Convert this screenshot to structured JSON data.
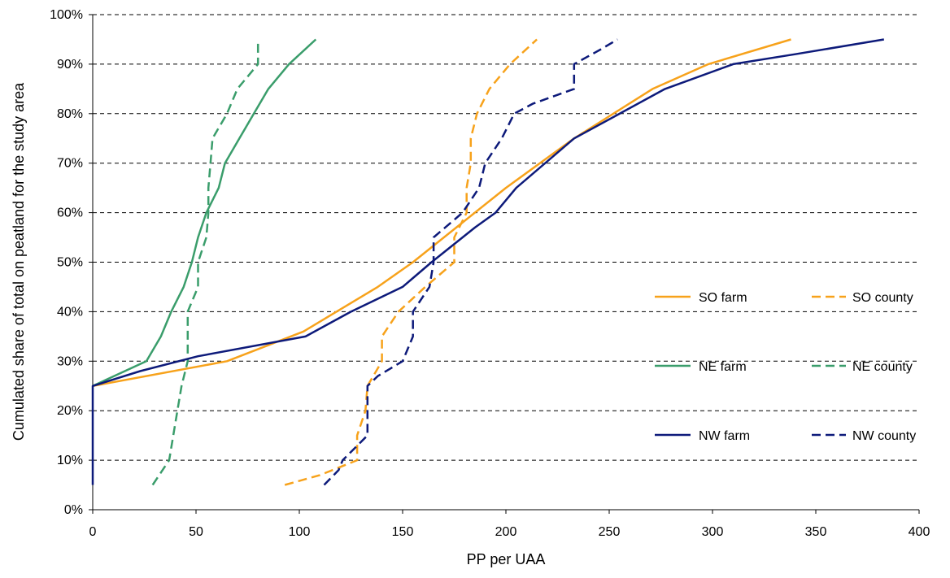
{
  "chart_data": {
    "type": "line",
    "title": "",
    "xlabel": "PP per UAA",
    "ylabel": "Cumulated share of total  on peatland for the study area",
    "xlim": [
      0,
      400
    ],
    "ylim": [
      0,
      100
    ],
    "x_ticks": [
      "0",
      "50",
      "100",
      "150",
      "200",
      "250",
      "300",
      "350",
      "400"
    ],
    "y_ticks": [
      "0%",
      "10%",
      "20%",
      "30%",
      "40%",
      "50%",
      "60%",
      "70%",
      "80%",
      "90%",
      "100%"
    ],
    "grid": "horizontal dashed",
    "legend_position": "right",
    "series": [
      {
        "name": "SO farm",
        "color": "#F7A21B",
        "dash": "solid",
        "points": [
          [
            0,
            25
          ],
          [
            65,
            30
          ],
          [
            102,
            36
          ],
          [
            138,
            45
          ],
          [
            155,
            50
          ],
          [
            170,
            55
          ],
          [
            200,
            65
          ],
          [
            233,
            75
          ],
          [
            271,
            85
          ],
          [
            298,
            90
          ],
          [
            338,
            95
          ]
        ]
      },
      {
        "name": "SO county",
        "color": "#F7A21B",
        "dash": "dashed",
        "points": [
          [
            93,
            5
          ],
          [
            110,
            7
          ],
          [
            122,
            9
          ],
          [
            128,
            10
          ],
          [
            128,
            15
          ],
          [
            132,
            20
          ],
          [
            133,
            25
          ],
          [
            140,
            30
          ],
          [
            140,
            35
          ],
          [
            148,
            40
          ],
          [
            161,
            45
          ],
          [
            175,
            50
          ],
          [
            175,
            55
          ],
          [
            181,
            60
          ],
          [
            181,
            65
          ],
          [
            183,
            70
          ],
          [
            183,
            75
          ],
          [
            186,
            80
          ],
          [
            192,
            85
          ],
          [
            202,
            90
          ],
          [
            215,
            95
          ]
        ]
      },
      {
        "name": "NE farm",
        "color": "#3A9D6B",
        "dash": "solid",
        "points": [
          [
            0,
            25
          ],
          [
            26,
            30
          ],
          [
            33,
            35
          ],
          [
            38,
            40
          ],
          [
            44,
            45
          ],
          [
            48,
            50
          ],
          [
            51,
            55
          ],
          [
            55,
            60
          ],
          [
            61,
            65
          ],
          [
            64,
            70
          ],
          [
            71,
            75
          ],
          [
            78,
            80
          ],
          [
            85,
            85
          ],
          [
            95,
            90
          ],
          [
            108,
            95
          ]
        ]
      },
      {
        "name": "NE county",
        "color": "#3A9D6B",
        "dash": "dashed",
        "points": [
          [
            29,
            5
          ],
          [
            37,
            10
          ],
          [
            41,
            20
          ],
          [
            43,
            25
          ],
          [
            46,
            30
          ],
          [
            46,
            35
          ],
          [
            46,
            40
          ],
          [
            51,
            45
          ],
          [
            51,
            50
          ],
          [
            55,
            55
          ],
          [
            56,
            60
          ],
          [
            56,
            65
          ],
          [
            57,
            70
          ],
          [
            58,
            75
          ],
          [
            65,
            80
          ],
          [
            70,
            85
          ],
          [
            80,
            90
          ],
          [
            80,
            95
          ]
        ]
      },
      {
        "name": "NW farm",
        "color": "#0D1A7A",
        "dash": "solid",
        "points": [
          [
            0,
            5
          ],
          [
            0,
            25
          ],
          [
            23,
            28
          ],
          [
            51,
            31
          ],
          [
            103,
            35
          ],
          [
            125,
            40
          ],
          [
            150,
            45
          ],
          [
            164,
            50
          ],
          [
            185,
            57
          ],
          [
            195,
            60
          ],
          [
            205,
            65
          ],
          [
            233,
            75
          ],
          [
            277,
            85
          ],
          [
            310,
            90
          ],
          [
            340,
            92
          ],
          [
            383,
            95
          ]
        ]
      },
      {
        "name": "NW county",
        "color": "#0D1A7A",
        "dash": "dashed",
        "points": [
          [
            112,
            5
          ],
          [
            119,
            8
          ],
          [
            121,
            10
          ],
          [
            133,
            15
          ],
          [
            133,
            20
          ],
          [
            133,
            25
          ],
          [
            138,
            27
          ],
          [
            150,
            30
          ],
          [
            155,
            35
          ],
          [
            155,
            40
          ],
          [
            163,
            45
          ],
          [
            165,
            50
          ],
          [
            165,
            55
          ],
          [
            179,
            60
          ],
          [
            187,
            65
          ],
          [
            190,
            70
          ],
          [
            198,
            75
          ],
          [
            204,
            80
          ],
          [
            213,
            82
          ],
          [
            233,
            85
          ],
          [
            233,
            90
          ],
          [
            246,
            93
          ],
          [
            254,
            95
          ]
        ]
      }
    ]
  }
}
